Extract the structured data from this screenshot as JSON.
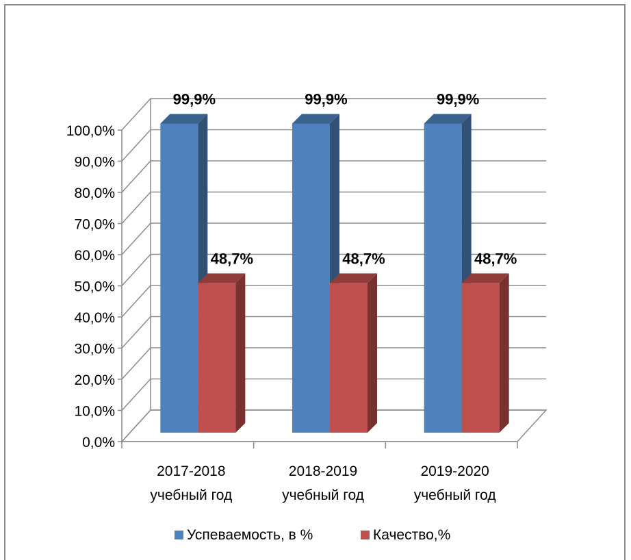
{
  "chart_data": {
    "type": "bar",
    "categories": [
      "2017-2018\nучебный год",
      "2018-2019\nучебный год",
      "2019-2020\nучебный год"
    ],
    "series": [
      {
        "name": "Успеваемость, в %",
        "values": [
          99.9,
          99.9,
          99.9
        ],
        "labels": [
          "99,9%",
          "99,9%",
          "99,9%"
        ],
        "color": "#4f81bd"
      },
      {
        "name": "Качество,%",
        "values": [
          48.7,
          48.7,
          48.7
        ],
        "labels": [
          "48,7%",
          "48,7%",
          "48,7%"
        ],
        "color": "#c0504d"
      }
    ],
    "y_ticks": [
      "0,0%",
      "10,0%",
      "20,0%",
      "30,0%",
      "40,0%",
      "50,0%",
      "60,0%",
      "70,0%",
      "80,0%",
      "90,0%",
      "100,0%"
    ],
    "ylim": [
      0,
      100
    ],
    "grid": true,
    "legend_position": "bottom",
    "three_d": true
  }
}
